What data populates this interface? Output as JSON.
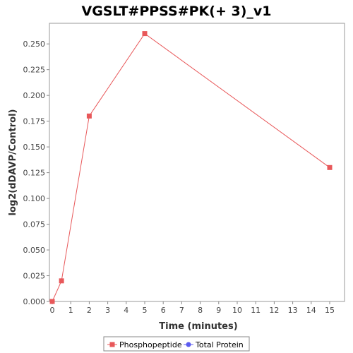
{
  "chart_data": {
    "type": "line",
    "title": "VGSLT#PPSS#PK(+ 3)_v1",
    "xlabel": "Time (minutes)",
    "ylabel": "log2(dDAVP/Control)",
    "xlim": [
      0,
      16
    ],
    "ylim": [
      0,
      0.27
    ],
    "x_ticks": [
      0,
      1,
      2,
      3,
      4,
      5,
      6,
      7,
      8,
      9,
      10,
      11,
      12,
      13,
      14,
      15
    ],
    "y_ticks": [
      "0.000",
      "0.025",
      "0.050",
      "0.075",
      "0.100",
      "0.125",
      "0.150",
      "0.175",
      "0.200",
      "0.225",
      "0.250"
    ],
    "grid": false,
    "legend_position": "bottom",
    "series": [
      {
        "name": "Phosphopeptide",
        "color": "#e8585a",
        "marker": "square",
        "x": [
          0,
          0.5,
          2,
          5,
          15
        ],
        "y": [
          0.0,
          0.02,
          0.18,
          0.26,
          0.13
        ]
      },
      {
        "name": "Total Protein",
        "color": "#5b5bf0",
        "marker": "circle",
        "x": [],
        "y": []
      }
    ]
  }
}
